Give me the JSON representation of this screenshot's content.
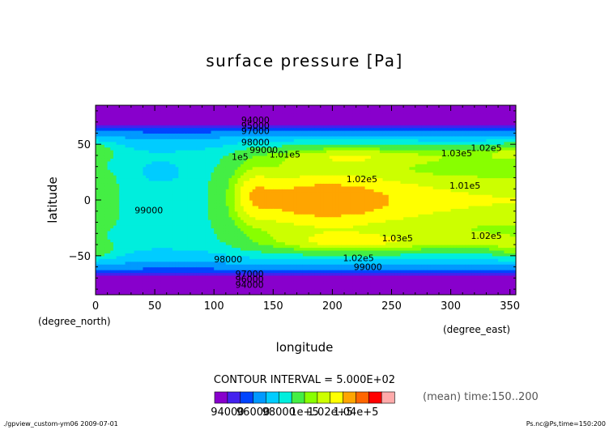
{
  "chart_data": {
    "type": "heatmap",
    "title": "surface pressure [Pa]",
    "xlabel": "longitude",
    "ylabel": "latitude",
    "x_unit": "(degree_east)",
    "y_unit": "(degree_north)",
    "xlim": [
      0,
      355
    ],
    "ylim": [
      -85,
      85
    ],
    "x_ticks": [
      0,
      50,
      100,
      150,
      200,
      250,
      300,
      350
    ],
    "y_ticks": [
      -50,
      0,
      50
    ],
    "contour_interval": "CONTOUR INTERVAL = 5.000E+02",
    "time_note": "(mean) time:150..200",
    "colorbar_labels": [
      "94000",
      "96000",
      "98000",
      "1e+5",
      "1.02e+5",
      "1.04e+5"
    ],
    "levels": [
      93000,
      94000,
      95000,
      96000,
      97000,
      98000,
      99000,
      100000,
      100500,
      101000,
      101500,
      102000,
      103000,
      104000
    ],
    "colors": [
      "#8800cc",
      "#4422ee",
      "#0044ff",
      "#0099ff",
      "#00ccff",
      "#00eedd",
      "#44ee44",
      "#88ff00",
      "#ccff00",
      "#ffff00",
      "#ffa500",
      "#ff6600",
      "#ff0000",
      "#ffaaaa"
    ],
    "contour_labels": [
      {
        "text": "94000",
        "lon": 135,
        "lat": 72
      },
      {
        "text": "95000",
        "lon": 135,
        "lat": 67
      },
      {
        "text": "97000",
        "lon": 135,
        "lat": 62
      },
      {
        "text": "98000",
        "lon": 135,
        "lat": 52
      },
      {
        "text": "99000",
        "lon": 142,
        "lat": 45
      },
      {
        "text": "1e5",
        "lon": 122,
        "lat": 39
      },
      {
        "text": "1.01e5",
        "lon": 160,
        "lat": 41
      },
      {
        "text": "1.03e5",
        "lon": 305,
        "lat": 42
      },
      {
        "text": "1.02e5",
        "lon": 330,
        "lat": 47
      },
      {
        "text": "1.02e5",
        "lon": 225,
        "lat": 19
      },
      {
        "text": "1.01e5",
        "lon": 312,
        "lat": 13
      },
      {
        "text": "99000",
        "lon": 45,
        "lat": -9
      },
      {
        "text": "1.03e5",
        "lon": 255,
        "lat": -34
      },
      {
        "text": "1.02e5",
        "lon": 330,
        "lat": -32
      },
      {
        "text": "98000",
        "lon": 112,
        "lat": -53
      },
      {
        "text": "1.02e5",
        "lon": 222,
        "lat": -52
      },
      {
        "text": "99000",
        "lon": 230,
        "lat": -60
      },
      {
        "text": "97000",
        "lon": 130,
        "lat": -66
      },
      {
        "text": "96000",
        "lon": 130,
        "lat": -71
      },
      {
        "text": "94000",
        "lon": 130,
        "lat": -76
      }
    ]
  },
  "footer": {
    "left": "./gpview_custom-ym06   2009-07-01",
    "right": "Ps.nc@Ps,time=150:200"
  }
}
